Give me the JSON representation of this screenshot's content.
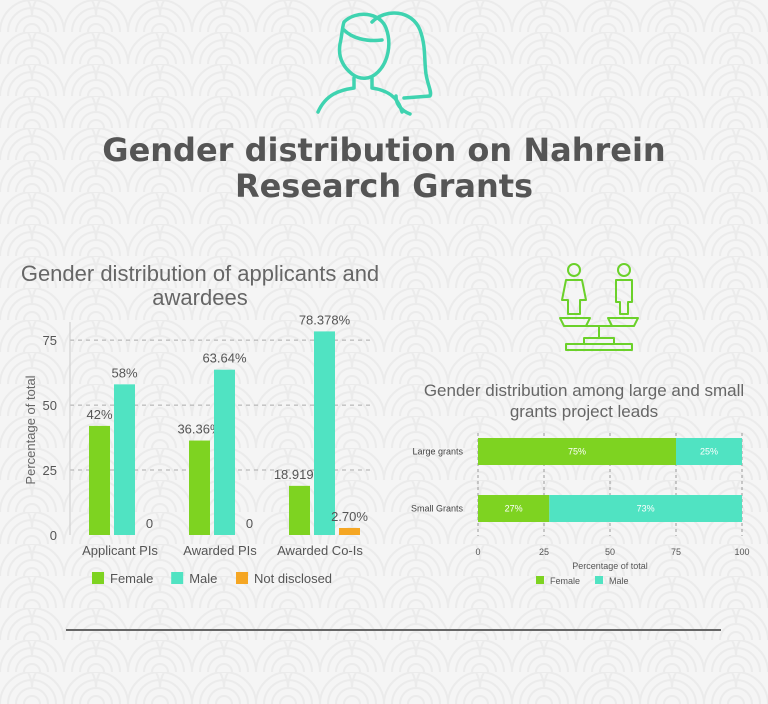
{
  "page": {
    "title_line1": "Gender distribution on Nahrein",
    "title_line2": "Research Grants",
    "icons": [
      "women-heads-icon",
      "balance-scale-gender-icon"
    ]
  },
  "colors": {
    "female": "#7ed321",
    "male": "#50e3c2",
    "not_disclosed": "#f5a623",
    "icon": "#3fd3b0",
    "balance_icon": "#6bd12a"
  },
  "chart_data": [
    {
      "type": "bar",
      "title": "Gender distribution of applicants and awardees",
      "title_line1": "Gender distribution of applicants and",
      "title_line2": "awardees",
      "xlabel": "",
      "ylabel": "Percentage of total",
      "categories": [
        "Applicant PIs",
        "Awarded PIs",
        "Awarded Co-Is"
      ],
      "series": [
        {
          "name": "Female",
          "values": [
            42,
            36.36,
            18.919
          ],
          "labels": [
            "42%",
            "36.36%",
            "18.919%"
          ]
        },
        {
          "name": "Male",
          "values": [
            58,
            63.64,
            78.378
          ],
          "labels": [
            "58%",
            "63.64%",
            "78.378%"
          ]
        },
        {
          "name": "Not disclosed",
          "values": [
            0,
            0,
            2.7
          ],
          "labels": [
            "0",
            "0",
            "2.70%"
          ]
        }
      ],
      "yticks": [
        "0",
        "25",
        "50",
        "75"
      ],
      "ylim": [
        0,
        82
      ],
      "grid": true,
      "legend": "bottom"
    },
    {
      "type": "bar",
      "orientation": "horizontal",
      "stacked": true,
      "title": "Gender distribution among large and small grants project leads",
      "title_line1": "Gender distribution among large and small",
      "title_line2": "grants project leads",
      "xlabel": "Percentage of total",
      "ylabel": "",
      "categories": [
        "Large grants",
        "Small Grants"
      ],
      "series": [
        {
          "name": "Female",
          "values": [
            75,
            27
          ],
          "labels": [
            "75%",
            "27%"
          ]
        },
        {
          "name": "Male",
          "values": [
            25,
            73
          ],
          "labels": [
            "25%",
            "73%"
          ]
        }
      ],
      "xticks": [
        "0",
        "25",
        "50",
        "75",
        "100"
      ],
      "xlim": [
        0,
        100
      ],
      "grid": true,
      "legend": "bottom"
    }
  ]
}
